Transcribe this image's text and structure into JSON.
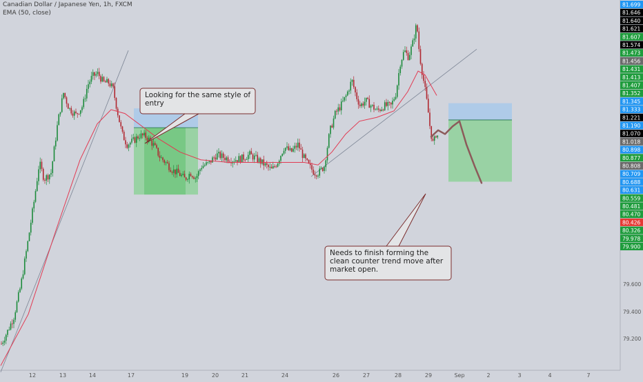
{
  "header": {
    "symbol_line": "Canadian Dollar / Japanese Yen, 1h, FXCM",
    "indicator_line": "EMA (50, close)"
  },
  "colors": {
    "background": "#d1d4dc",
    "up_candle": "#1b8a3a",
    "down_candle": "#b0262f",
    "ema_line": "#e23a52",
    "trendline": "#7b8494",
    "projection": "#8c5a5a",
    "stop_zone": "#a9c9ea",
    "target_zone": "#8fd19a",
    "callout_border": "#7a2c2c",
    "callout_fill": "#e3e4e6"
  },
  "annotations": [
    {
      "text": "Looking for the same style of entry"
    },
    {
      "text": "Needs to finish forming the clean counter trend move after market open."
    }
  ],
  "chart_data": {
    "type": "candlestick",
    "title": "Canadian Dollar / Japanese Yen, 1h, FXCM",
    "indicator": "EMA (50, close)",
    "x_tick_labels": [
      "12",
      "13",
      "14",
      "17",
      "19",
      "20",
      "21",
      "24",
      "26",
      "27",
      "28",
      "29",
      "Sep",
      "2",
      "3",
      "4",
      "7"
    ],
    "y_axis_ticks": [
      "79.600",
      "79.400",
      "79.200"
    ],
    "price_labels": [
      {
        "text": "81.699",
        "bg": "#2196f3"
      },
      {
        "text": "81.646",
        "bg": "#000000"
      },
      {
        "text": "81.640",
        "bg": "#000000"
      },
      {
        "text": "81.621",
        "bg": "#000000"
      },
      {
        "text": "81.607",
        "bg": "#1e9c3c"
      },
      {
        "text": "81.574",
        "bg": "#000000"
      },
      {
        "text": "81.473",
        "bg": "#1e9c3c"
      },
      {
        "text": "81.456",
        "bg": "#6b6b6b"
      },
      {
        "text": "81.431",
        "bg": "#1e9c3c"
      },
      {
        "text": "81.413",
        "bg": "#1e9c3c"
      },
      {
        "text": "81.407",
        "bg": "#1e9c3c"
      },
      {
        "text": "81.352",
        "bg": "#1e9c3c"
      },
      {
        "text": "81.345",
        "bg": "#2196f3"
      },
      {
        "text": "81.333",
        "bg": "#2196f3"
      },
      {
        "text": "81.221",
        "bg": "#000000"
      },
      {
        "text": "81.190",
        "bg": "#2196f3"
      },
      {
        "text": "81.070",
        "bg": "#000000"
      },
      {
        "text": "81.018",
        "bg": "#6b6b6b"
      },
      {
        "text": "80.898",
        "bg": "#2196f3"
      },
      {
        "text": "80.877",
        "bg": "#1e9c3c"
      },
      {
        "text": "80.808",
        "bg": "#6b6b6b"
      },
      {
        "text": "80.709",
        "bg": "#2196f3"
      },
      {
        "text": "80.688",
        "bg": "#2196f3"
      },
      {
        "text": "80.631",
        "bg": "#2196f3"
      },
      {
        "text": "80.559",
        "bg": "#1e9c3c"
      },
      {
        "text": "80.481",
        "bg": "#1e9c3c"
      },
      {
        "text": "80.470",
        "bg": "#1e9c3c"
      },
      {
        "text": "80.426",
        "bg": "#e53935"
      },
      {
        "text": "80.326",
        "bg": "#1e9c3c"
      },
      {
        "text": "79.978",
        "bg": "#1e9c3c"
      },
      {
        "text": "79.900",
        "bg": "#1e9c3c"
      }
    ],
    "candle_path": [
      [
        0,
        79.17
      ],
      [
        10,
        79.28
      ],
      [
        18,
        79.38
      ],
      [
        28,
        79.62
      ],
      [
        38,
        79.95
      ],
      [
        48,
        80.3
      ],
      [
        55,
        80.58
      ],
      [
        62,
        80.45
      ],
      [
        72,
        80.5
      ],
      [
        82,
        80.9
      ],
      [
        90,
        81.12
      ],
      [
        98,
        81.0
      ],
      [
        108,
        80.95
      ],
      [
        118,
        81.02
      ],
      [
        125,
        81.18
      ],
      [
        132,
        81.25
      ],
      [
        140,
        81.27
      ],
      [
        148,
        81.2
      ],
      [
        156,
        81.2
      ],
      [
        162,
        81.15
      ],
      [
        168,
        80.98
      ],
      [
        175,
        80.8
      ],
      [
        182,
        80.72
      ],
      [
        192,
        80.75
      ],
      [
        200,
        80.79
      ],
      [
        210,
        80.78
      ],
      [
        220,
        80.72
      ],
      [
        230,
        80.62
      ],
      [
        238,
        80.58
      ],
      [
        248,
        80.52
      ],
      [
        258,
        80.49
      ],
      [
        266,
        80.45
      ],
      [
        274,
        80.5
      ],
      [
        282,
        80.46
      ],
      [
        290,
        80.55
      ],
      [
        300,
        80.57
      ],
      [
        312,
        80.64
      ],
      [
        322,
        80.62
      ],
      [
        335,
        80.6
      ],
      [
        348,
        80.61
      ],
      [
        360,
        80.64
      ],
      [
        372,
        80.6
      ],
      [
        382,
        80.56
      ],
      [
        392,
        80.52
      ],
      [
        400,
        80.58
      ],
      [
        410,
        80.7
      ],
      [
        420,
        80.66
      ],
      [
        430,
        80.72
      ],
      [
        438,
        80.62
      ],
      [
        446,
        80.55
      ],
      [
        454,
        80.5
      ],
      [
        460,
        80.5
      ],
      [
        468,
        80.55
      ],
      [
        476,
        80.82
      ],
      [
        484,
        80.96
      ],
      [
        492,
        81.02
      ],
      [
        500,
        81.1
      ],
      [
        508,
        81.22
      ],
      [
        514,
        81.1
      ],
      [
        520,
        81.02
      ],
      [
        528,
        81.06
      ],
      [
        536,
        81.02
      ],
      [
        545,
        80.98
      ],
      [
        555,
        81.02
      ],
      [
        565,
        81.02
      ],
      [
        572,
        81.12
      ],
      [
        578,
        81.35
      ],
      [
        584,
        81.45
      ],
      [
        590,
        81.4
      ],
      [
        596,
        81.5
      ],
      [
        602,
        81.66
      ],
      [
        606,
        81.42
      ],
      [
        610,
        81.28
      ],
      [
        614,
        81.15
      ],
      [
        618,
        81.0
      ],
      [
        622,
        80.82
      ],
      [
        626,
        80.72
      ],
      [
        630,
        80.8
      ],
      [
        634,
        80.78
      ]
    ],
    "ema": [
      [
        0,
        79.0
      ],
      [
        40,
        79.4
      ],
      [
        80,
        80.05
      ],
      [
        115,
        80.6
      ],
      [
        140,
        80.88
      ],
      [
        160,
        80.99
      ],
      [
        180,
        80.96
      ],
      [
        205,
        80.86
      ],
      [
        230,
        80.76
      ],
      [
        260,
        80.66
      ],
      [
        290,
        80.6
      ],
      [
        330,
        80.58
      ],
      [
        370,
        80.58
      ],
      [
        410,
        80.58
      ],
      [
        440,
        80.58
      ],
      [
        460,
        80.56
      ],
      [
        480,
        80.66
      ],
      [
        500,
        80.8
      ],
      [
        520,
        80.9
      ],
      [
        545,
        80.93
      ],
      [
        570,
        80.98
      ],
      [
        590,
        81.13
      ],
      [
        605,
        81.29
      ],
      [
        615,
        81.26
      ],
      [
        632,
        81.1
      ]
    ],
    "trendlines": [
      {
        "from": [
          0,
          78.95
        ],
        "to": [
          185,
          81.45
        ]
      },
      {
        "from": [
          450,
          80.47
        ],
        "to": [
          690,
          81.46
        ]
      }
    ],
    "projection": [
      [
        624,
        80.78
      ],
      [
        634,
        80.83
      ],
      [
        644,
        80.8
      ],
      [
        655,
        80.86
      ],
      [
        665,
        80.9
      ],
      [
        675,
        80.72
      ],
      [
        687,
        80.55
      ],
      [
        697,
        80.42
      ]
    ],
    "positions": [
      {
        "x": [
          193,
          286
        ],
        "entry": 80.85,
        "stop": 81.0,
        "target": 80.33
      },
      {
        "x": [
          649,
          741
        ],
        "entry": 80.91,
        "stop": 81.04,
        "target": 80.43
      }
    ]
  }
}
